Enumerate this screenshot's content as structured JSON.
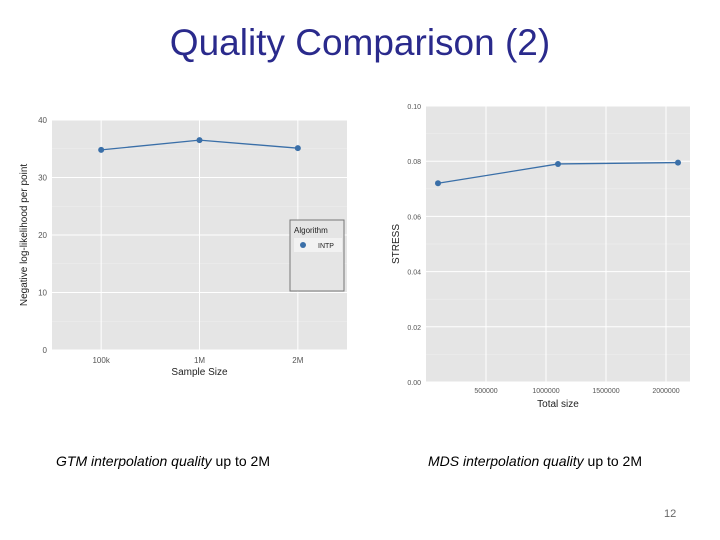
{
  "slide": {
    "title": "Quality Comparison (2)",
    "caption_left_italic": "GTM interpolation quality",
    "caption_left_rest": " up to 2M",
    "caption_right_italic": "MDS interpolation quality",
    "caption_right_rest": " up to 2M",
    "page_number": "12"
  },
  "chart_data": [
    {
      "type": "line",
      "categories": [
        "100k",
        "1M",
        "2M"
      ],
      "series": [
        {
          "name": "INTP",
          "values": [
            34.8,
            36.5,
            35.1
          ]
        }
      ],
      "xlabel": "Sample Size",
      "ylabel": "Negative log-likelihood per point",
      "ylim": [
        0,
        40
      ],
      "yticks": [
        "0",
        "10",
        "20",
        "30",
        "40"
      ],
      "grid": true,
      "legend": {
        "title": "Algorithm",
        "placement": "right"
      },
      "colors": {
        "series": "#3a6fa8",
        "panel": "#e5e5e5",
        "grid": "#ffffff"
      }
    },
    {
      "type": "line",
      "x": [
        100000,
        1100000,
        2100000
      ],
      "series": [
        {
          "values": [
            0.072,
            0.079,
            0.0795
          ]
        }
      ],
      "xlabel": "Total size",
      "ylabel": "STRESS",
      "xticks": [
        {
          "value": 500000,
          "label": "500000"
        },
        {
          "value": 1000000,
          "label": "1000000"
        },
        {
          "value": 1500000,
          "label": "1500000"
        },
        {
          "value": 2000000,
          "label": "2000000"
        }
      ],
      "yticks": [
        "0.00",
        "0.02",
        "0.04",
        "0.06",
        "0.08",
        "0.10"
      ],
      "ylim": [
        0,
        0.1
      ],
      "xlim": [
        0,
        2200000
      ],
      "grid": true,
      "colors": {
        "series": "#3a6fa8",
        "panel": "#e5e5e5",
        "grid": "#ffffff"
      }
    }
  ]
}
